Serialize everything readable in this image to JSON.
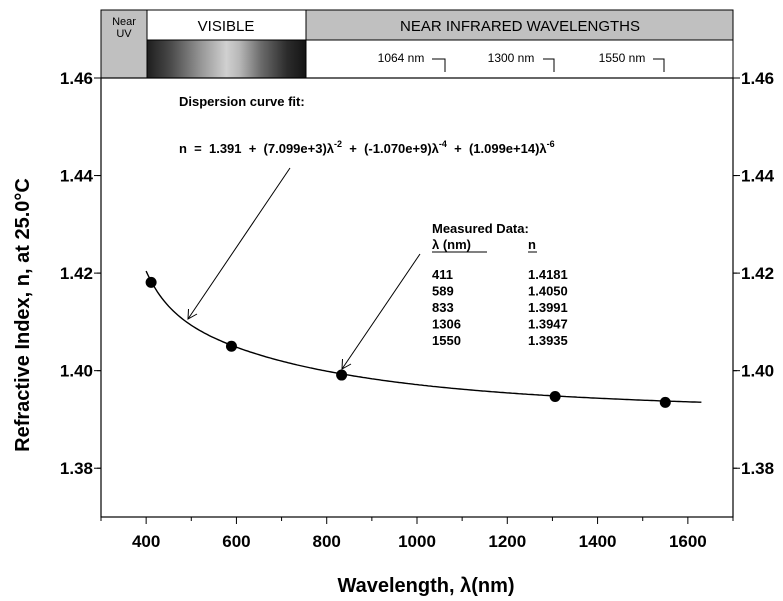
{
  "spectrum_bands": {
    "near_uv": "Near UV",
    "visible": "VISIBLE",
    "near_ir": "NEAR INFRARED WAVELENGTHS",
    "markers": [
      "1064 nm",
      "1300 nm",
      "1550 nm"
    ]
  },
  "annotations": {
    "fit_title": "Dispersion curve fit:",
    "equation": {
      "prefix": "n  =  1.391  +  (7.099e+3)λ",
      "exp1": "-2",
      "mid1": "  +  (-1.070e+9)λ",
      "exp2": "-4",
      "mid2": "  +  (1.099e+14)λ",
      "exp3": "-6"
    },
    "measured_title": "Measured Data:",
    "col_lambda": "λ (nm)",
    "col_n": "n",
    "rows": [
      {
        "lambda": "411",
        "n": "1.4181"
      },
      {
        "lambda": "589",
        "n": "1.4050"
      },
      {
        "lambda": "833",
        "n": "1.3991"
      },
      {
        "lambda": "1306",
        "n": "1.3947"
      },
      {
        "lambda": "1550",
        "n": "1.3935"
      }
    ]
  },
  "chart_data": {
    "type": "scatter",
    "title": "",
    "xlabel": "Wavelength, λ(nm)",
    "ylabel": "Refractive Index, n, at 25.0°C",
    "xlim": [
      300,
      1700
    ],
    "ylim": [
      1.37,
      1.46
    ],
    "xticks": [
      400,
      600,
      800,
      1000,
      1200,
      1400,
      1600
    ],
    "yticks": [
      1.38,
      1.4,
      1.42,
      1.44,
      1.46
    ],
    "ytick_labels": [
      "1.38",
      "1.40",
      "1.42",
      "1.44",
      "1.46"
    ],
    "series": [
      {
        "kind": "points",
        "x": [
          411,
          589,
          833,
          1306,
          1550
        ],
        "y": [
          1.4181,
          1.405,
          1.3991,
          1.3947,
          1.3935
        ]
      },
      {
        "kind": "fit",
        "coefficients": [
          1.391,
          7099,
          -1070000000,
          109900000000000
        ],
        "x_range": [
          400,
          1630
        ]
      }
    ],
    "grid": false,
    "legend": "none"
  }
}
